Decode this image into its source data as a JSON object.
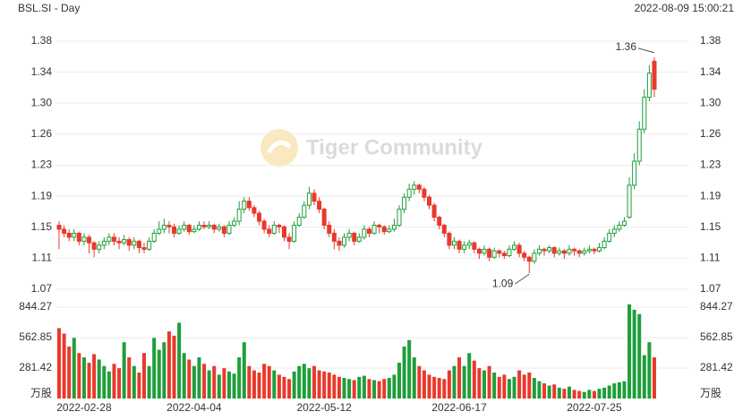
{
  "chart_data": {
    "type": "candlestick",
    "title": "BSL.SI - Day",
    "timestamp": "2022-08-09 15:00:21",
    "watermark": "Tiger Community",
    "up_color": "#1f9e3a",
    "down_color": "#e8392b",
    "categories": [
      null,
      null,
      null,
      null,
      null,
      "2022-02-28",
      null,
      null,
      null,
      null,
      null,
      null,
      null,
      null,
      null,
      null,
      null,
      null,
      null,
      null,
      null,
      null,
      null,
      null,
      null,
      null,
      null,
      "2022-04-04",
      null,
      null,
      null,
      null,
      null,
      null,
      null,
      null,
      null,
      null,
      null,
      null,
      null,
      null,
      null,
      null,
      null,
      null,
      null,
      null,
      null,
      null,
      null,
      null,
      null,
      "2022-05-12",
      null,
      null,
      null,
      null,
      null,
      null,
      null,
      null,
      null,
      null,
      null,
      null,
      null,
      null,
      null,
      null,
      null,
      null,
      null,
      null,
      null,
      null,
      null,
      null,
      null,
      null,
      "2022-06-17",
      null,
      null,
      null,
      null,
      null,
      null,
      null,
      null,
      null,
      null,
      null,
      null,
      null,
      null,
      null,
      null,
      null,
      null,
      null,
      null,
      null,
      null,
      null,
      null,
      null,
      null,
      "2022-07-25",
      null,
      null,
      null,
      null,
      null,
      null,
      null,
      null,
      null,
      null,
      null,
      null
    ],
    "ohlc": [
      [
        1.15,
        1.155,
        1.12,
        1.145
      ],
      [
        1.145,
        1.15,
        1.135,
        1.14
      ],
      [
        1.14,
        1.145,
        1.13,
        1.135
      ],
      [
        1.135,
        1.145,
        1.13,
        1.14
      ],
      [
        1.14,
        1.142,
        1.125,
        1.13
      ],
      [
        1.13,
        1.14,
        1.125,
        1.135
      ],
      [
        1.135,
        1.138,
        1.115,
        1.128
      ],
      [
        1.128,
        1.13,
        1.11,
        1.12
      ],
      [
        1.12,
        1.13,
        1.115,
        1.125
      ],
      [
        1.125,
        1.135,
        1.12,
        1.13
      ],
      [
        1.13,
        1.14,
        1.125,
        1.135
      ],
      [
        1.135,
        1.14,
        1.125,
        1.13
      ],
      [
        1.13,
        1.135,
        1.12,
        1.128
      ],
      [
        1.128,
        1.138,
        1.125,
        1.132
      ],
      [
        1.132,
        1.135,
        1.118,
        1.125
      ],
      [
        1.125,
        1.135,
        1.12,
        1.13
      ],
      [
        1.13,
        1.132,
        1.115,
        1.122
      ],
      [
        1.122,
        1.128,
        1.115,
        1.12
      ],
      [
        1.12,
        1.135,
        1.118,
        1.13
      ],
      [
        1.13,
        1.145,
        1.128,
        1.14
      ],
      [
        1.14,
        1.155,
        1.138,
        1.145
      ],
      [
        1.145,
        1.158,
        1.14,
        1.15
      ],
      [
        1.15,
        1.155,
        1.14,
        1.148
      ],
      [
        1.148,
        1.152,
        1.135,
        1.14
      ],
      [
        1.14,
        1.15,
        1.138,
        1.145
      ],
      [
        1.145,
        1.155,
        1.142,
        1.15
      ],
      [
        1.15,
        1.152,
        1.138,
        1.142
      ],
      [
        1.142,
        1.15,
        1.14,
        1.145
      ],
      [
        1.145,
        1.155,
        1.143,
        1.15
      ],
      [
        1.15,
        1.155,
        1.145,
        1.148
      ],
      [
        1.148,
        1.155,
        1.145,
        1.15
      ],
      [
        1.15,
        1.152,
        1.14,
        1.145
      ],
      [
        1.145,
        1.152,
        1.142,
        1.148
      ],
      [
        1.148,
        1.15,
        1.135,
        1.14
      ],
      [
        1.14,
        1.155,
        1.138,
        1.15
      ],
      [
        1.15,
        1.16,
        1.148,
        1.155
      ],
      [
        1.155,
        1.18,
        1.15,
        1.17
      ],
      [
        1.17,
        1.185,
        1.165,
        1.18
      ],
      [
        1.18,
        1.185,
        1.168,
        1.172
      ],
      [
        1.172,
        1.175,
        1.16,
        1.165
      ],
      [
        1.165,
        1.168,
        1.15,
        1.155
      ],
      [
        1.155,
        1.158,
        1.14,
        1.145
      ],
      [
        1.145,
        1.15,
        1.135,
        1.14
      ],
      [
        1.14,
        1.155,
        1.138,
        1.15
      ],
      [
        1.15,
        1.152,
        1.14,
        1.148
      ],
      [
        1.148,
        1.15,
        1.13,
        1.135
      ],
      [
        1.135,
        1.14,
        1.12,
        1.13
      ],
      [
        1.13,
        1.155,
        1.128,
        1.15
      ],
      [
        1.15,
        1.165,
        1.148,
        1.16
      ],
      [
        1.16,
        1.18,
        1.158,
        1.175
      ],
      [
        1.175,
        1.198,
        1.17,
        1.19
      ],
      [
        1.19,
        1.195,
        1.175,
        1.18
      ],
      [
        1.18,
        1.185,
        1.165,
        1.17
      ],
      [
        1.17,
        1.172,
        1.145,
        1.15
      ],
      [
        1.15,
        1.155,
        1.135,
        1.14
      ],
      [
        1.14,
        1.145,
        1.12,
        1.13
      ],
      [
        1.13,
        1.135,
        1.118,
        1.125
      ],
      [
        1.125,
        1.14,
        1.122,
        1.135
      ],
      [
        1.135,
        1.145,
        1.13,
        1.14
      ],
      [
        1.14,
        1.142,
        1.125,
        1.13
      ],
      [
        1.13,
        1.14,
        1.128,
        1.135
      ],
      [
        1.135,
        1.15,
        1.132,
        1.145
      ],
      [
        1.145,
        1.148,
        1.135,
        1.14
      ],
      [
        1.14,
        1.155,
        1.138,
        1.15
      ],
      [
        1.15,
        1.152,
        1.14,
        1.148
      ],
      [
        1.148,
        1.15,
        1.138,
        1.142
      ],
      [
        1.142,
        1.15,
        1.14,
        1.145
      ],
      [
        1.145,
        1.158,
        1.142,
        1.15
      ],
      [
        1.15,
        1.175,
        1.148,
        1.17
      ],
      [
        1.17,
        1.19,
        1.165,
        1.185
      ],
      [
        1.185,
        1.202,
        1.18,
        1.195
      ],
      [
        1.195,
        1.205,
        1.188,
        1.2
      ],
      [
        1.2,
        1.202,
        1.19,
        1.195
      ],
      [
        1.195,
        1.198,
        1.18,
        1.185
      ],
      [
        1.185,
        1.188,
        1.17,
        1.175
      ],
      [
        1.175,
        1.178,
        1.155,
        1.16
      ],
      [
        1.16,
        1.162,
        1.145,
        1.15
      ],
      [
        1.15,
        1.152,
        1.135,
        1.14
      ],
      [
        1.14,
        1.142,
        1.12,
        1.125
      ],
      [
        1.125,
        1.135,
        1.12,
        1.13
      ],
      [
        1.13,
        1.132,
        1.115,
        1.12
      ],
      [
        1.12,
        1.13,
        1.115,
        1.125
      ],
      [
        1.125,
        1.132,
        1.12,
        1.128
      ],
      [
        1.128,
        1.13,
        1.115,
        1.12
      ],
      [
        1.12,
        1.122,
        1.108,
        1.115
      ],
      [
        1.115,
        1.125,
        1.112,
        1.12
      ],
      [
        1.12,
        1.122,
        1.105,
        1.11
      ],
      [
        1.11,
        1.122,
        1.108,
        1.118
      ],
      [
        1.118,
        1.12,
        1.11,
        1.115
      ],
      [
        1.115,
        1.118,
        1.108,
        1.112
      ],
      [
        1.112,
        1.125,
        1.11,
        1.12
      ],
      [
        1.12,
        1.13,
        1.118,
        1.125
      ],
      [
        1.125,
        1.128,
        1.11,
        1.115
      ],
      [
        1.115,
        1.118,
        1.105,
        1.11
      ],
      [
        1.11,
        1.112,
        1.09,
        1.105
      ],
      [
        1.105,
        1.12,
        1.102,
        1.115
      ],
      [
        1.115,
        1.125,
        1.112,
        1.12
      ],
      [
        1.12,
        1.122,
        1.112,
        1.118
      ],
      [
        1.118,
        1.125,
        1.115,
        1.122
      ],
      [
        1.122,
        1.124,
        1.11,
        1.115
      ],
      [
        1.115,
        1.122,
        1.112,
        1.118
      ],
      [
        1.118,
        1.12,
        1.108,
        1.115
      ],
      [
        1.115,
        1.125,
        1.112,
        1.12
      ],
      [
        1.12,
        1.122,
        1.112,
        1.118
      ],
      [
        1.118,
        1.12,
        1.11,
        1.115
      ],
      [
        1.115,
        1.122,
        1.112,
        1.118
      ],
      [
        1.118,
        1.125,
        1.115,
        1.12
      ],
      [
        1.12,
        1.122,
        1.114,
        1.118
      ],
      [
        1.118,
        1.128,
        1.116,
        1.122
      ],
      [
        1.122,
        1.135,
        1.12,
        1.13
      ],
      [
        1.13,
        1.145,
        1.128,
        1.14
      ],
      [
        1.14,
        1.15,
        1.135,
        1.145
      ],
      [
        1.145,
        1.155,
        1.142,
        1.15
      ],
      [
        1.15,
        1.16,
        1.148,
        1.155
      ],
      [
        1.16,
        1.21,
        1.158,
        1.2
      ],
      [
        1.2,
        1.24,
        1.195,
        1.23
      ],
      [
        1.23,
        1.28,
        1.225,
        1.27
      ],
      [
        1.27,
        1.32,
        1.265,
        1.31
      ],
      [
        1.31,
        1.35,
        1.305,
        1.34
      ],
      [
        1.355,
        1.36,
        1.31,
        1.32
      ]
    ],
    "ylim": [
      1.07,
      1.38
    ],
    "yticks": [
      1.07,
      {
        "value": 1.10875,
        "label": "1.11"
      },
      {
        "value": 1.1475,
        "label": "1.15"
      },
      {
        "value": 1.18625,
        "label": "1.19"
      },
      {
        "value": 1.225,
        "label": "1.23"
      },
      {
        "value": 1.26375,
        "label": "1.26"
      },
      {
        "value": 1.3025,
        "label": "1.30"
      },
      {
        "value": 1.34125,
        "label": "1.34"
      },
      1.38
    ],
    "high_mark": 1.36,
    "low_mark": 1.09,
    "volume": {
      "unit": "万股",
      "ylim": [
        0,
        910
      ],
      "yticks": [
        281.42,
        562.85,
        844.27
      ],
      "values": [
        650,
        600,
        480,
        560,
        420,
        380,
        330,
        410,
        360,
        300,
        250,
        320,
        280,
        520,
        380,
        300,
        240,
        420,
        300,
        560,
        450,
        520,
        620,
        580,
        700,
        420,
        360,
        300,
        380,
        320,
        260,
        300,
        220,
        280,
        250,
        230,
        380,
        520,
        300,
        260,
        240,
        320,
        300,
        260,
        220,
        200,
        180,
        250,
        300,
        320,
        280,
        300,
        260,
        250,
        240,
        220,
        200,
        190,
        180,
        170,
        200,
        210,
        180,
        170,
        160,
        180,
        190,
        220,
        330,
        480,
        540,
        380,
        300,
        260,
        220,
        200,
        190,
        180,
        260,
        300,
        380,
        300,
        420,
        350,
        280,
        260,
        300,
        240,
        200,
        220,
        180,
        200,
        260,
        220,
        240,
        190,
        160,
        140,
        120,
        130,
        100,
        90,
        110,
        80,
        70,
        60,
        80,
        70,
        90,
        100,
        120,
        140,
        150,
        160,
        870,
        820,
        780,
        400,
        520,
        380
      ]
    }
  }
}
